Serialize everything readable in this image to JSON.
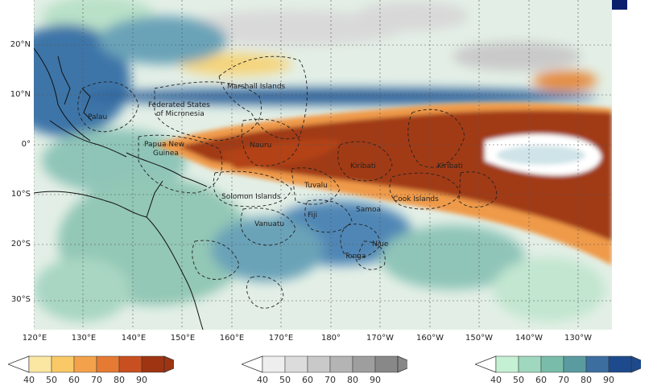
{
  "map": {
    "lat_labels": [
      "20°N",
      "10°N",
      "0°",
      "10°S",
      "20°S",
      "30°S"
    ],
    "lon_labels": [
      "120°E",
      "130°E",
      "140°E",
      "150°E",
      "160°E",
      "170°E",
      "180°",
      "170°W",
      "160°W",
      "150°W",
      "140°W",
      "130°W"
    ],
    "regions": [
      {
        "name": "Marshall Islands"
      },
      {
        "name": "Federated States"
      },
      {
        "name": "of Micronesia"
      },
      {
        "name": "Palau"
      },
      {
        "name": "Papua New"
      },
      {
        "name": "Guinea"
      },
      {
        "name": "Nauru"
      },
      {
        "name": "Kiribati"
      },
      {
        "name": "Kiribati"
      },
      {
        "name": "Tuvalu"
      },
      {
        "name": "Solomon Islands"
      },
      {
        "name": "Cook Islands"
      },
      {
        "name": "Samoa"
      },
      {
        "name": "Fiji"
      },
      {
        "name": "Vanuatu"
      },
      {
        "name": "Niue"
      },
      {
        "name": "Tonga"
      }
    ]
  },
  "colorbars": [
    {
      "category": "above-normal",
      "ticks": [
        "40",
        "50",
        "60",
        "70",
        "80",
        "90"
      ],
      "colors": [
        "#fbe6a2",
        "#f8c966",
        "#f3a24b",
        "#e57a33",
        "#c85020",
        "#9e3412"
      ]
    },
    {
      "category": "near-normal",
      "ticks": [
        "40",
        "50",
        "60",
        "70",
        "80",
        "90"
      ],
      "colors": [
        "#eeeeee",
        "#dcdcdc",
        "#c9c9c9",
        "#b4b4b4",
        "#9e9e9e",
        "#888888"
      ]
    },
    {
      "category": "below-normal",
      "ticks": [
        "40",
        "50",
        "60",
        "70",
        "80",
        "90"
      ],
      "colors": [
        "#c6f0d4",
        "#9fd8be",
        "#79bcaa",
        "#5a9ba0",
        "#3c6fa0",
        "#1d4a8c"
      ]
    }
  ],
  "colors": {
    "ocean_base": "#e9f3ec",
    "land_outline": "#111111",
    "border_dash": "#333333",
    "legend_box": "#0a1e6e"
  }
}
